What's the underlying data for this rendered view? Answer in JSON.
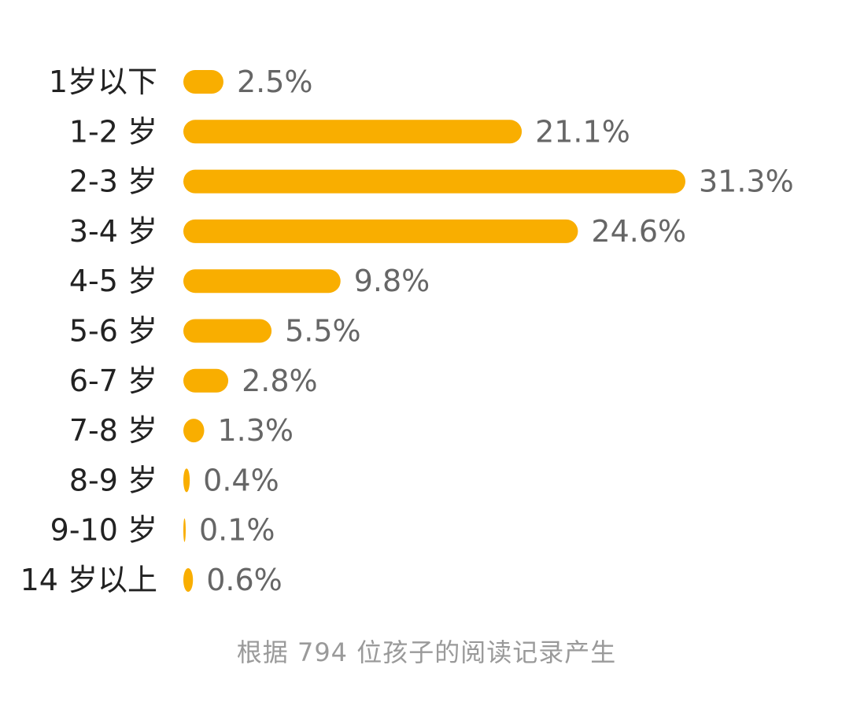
{
  "chart_data": {
    "type": "bar",
    "orientation": "horizontal",
    "categories": [
      "1岁以下",
      "1-2 岁",
      "2-3 岁",
      "3-4 岁",
      "4-5 岁",
      "5-6 岁",
      "6-7 岁",
      "7-8 岁",
      "8-9 岁",
      "9-10 岁",
      "14 岁以上"
    ],
    "values": [
      2.5,
      21.1,
      31.3,
      24.6,
      9.8,
      5.5,
      2.8,
      1.3,
      0.4,
      0.1,
      0.6
    ],
    "value_labels": [
      "2.5%",
      "21.1%",
      "31.3%",
      "24.6%",
      "9.8%",
      "5.5%",
      "2.8%",
      "1.3%",
      "0.4%",
      "0.1%",
      "0.6%"
    ],
    "value_unit": "%",
    "xlim": [
      0,
      31.3
    ],
    "grid": false,
    "legend": "none",
    "bar_color": "#F9AE00",
    "label_color": "#222222",
    "value_label_color": "#666666"
  },
  "footnote": "根据 794 位孩子的阅读记录产生",
  "footnote_color": "#9a9a9a"
}
